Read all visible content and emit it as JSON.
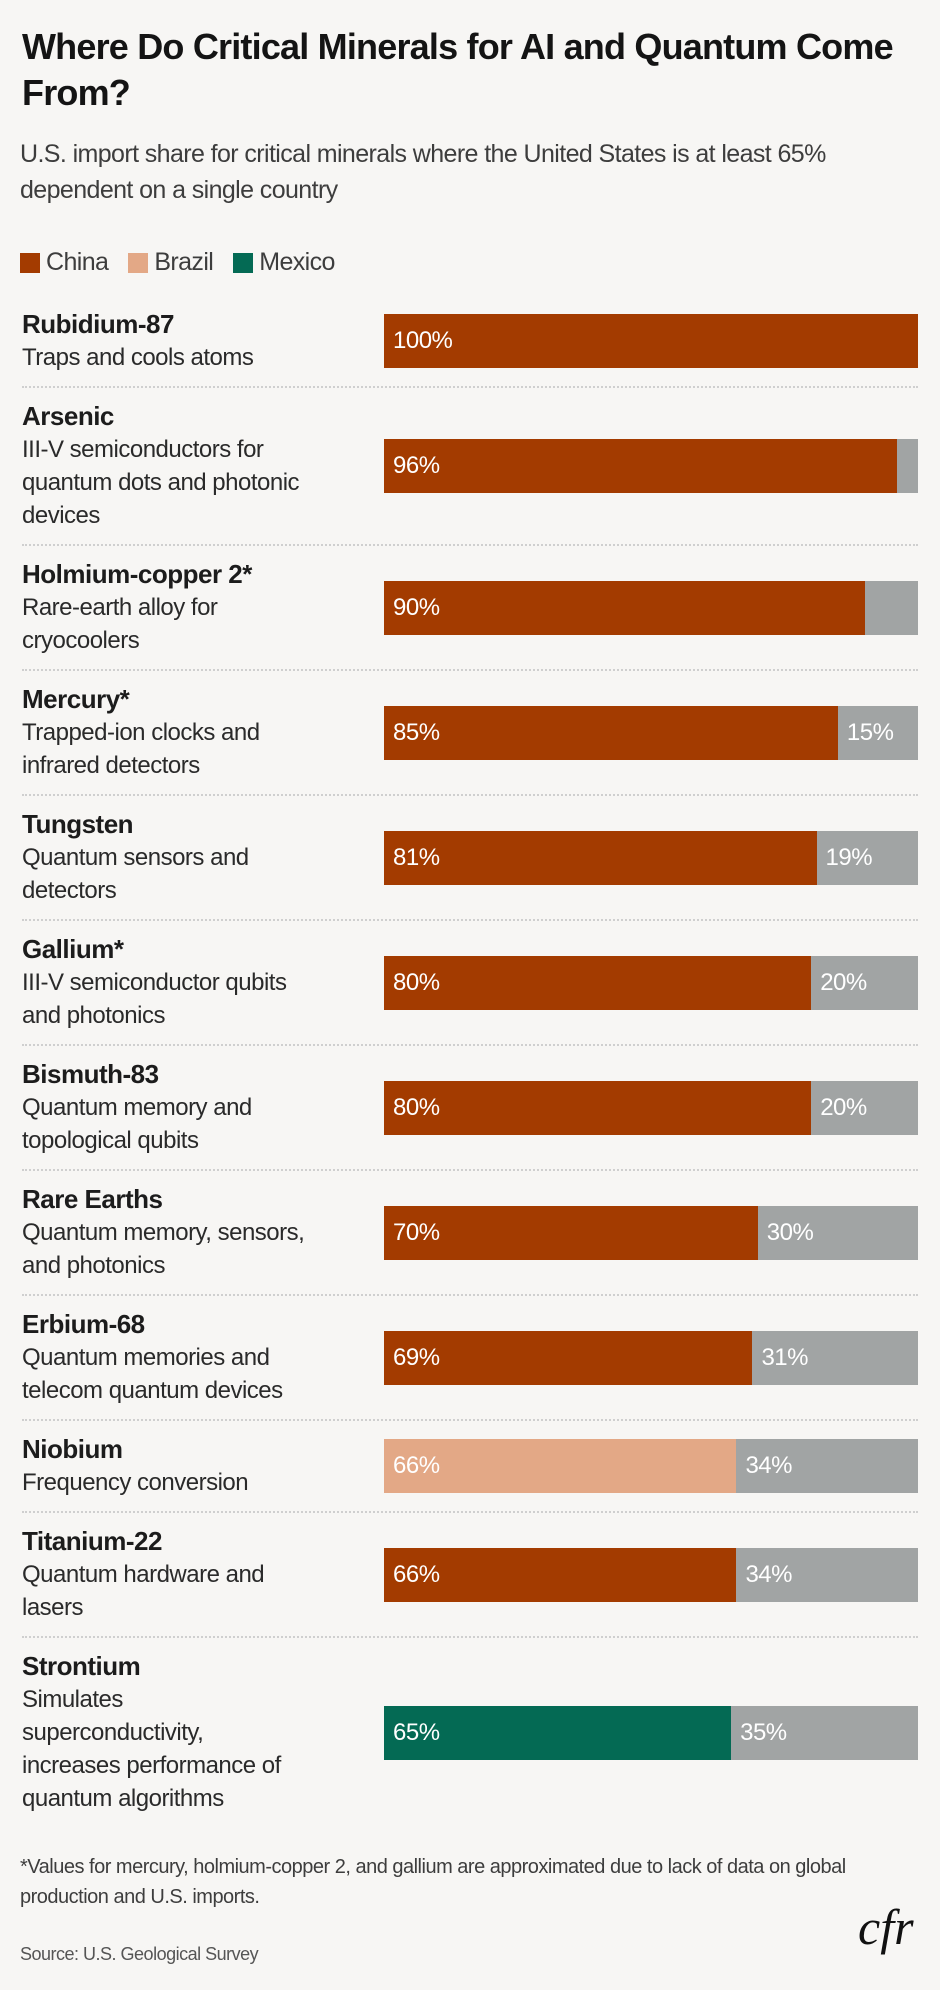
{
  "colors": {
    "China": "#a33b00",
    "Brazil": "#e3a886",
    "Mexico": "#046a54",
    "Other": "#a1a4a4"
  },
  "logo_text": "cfr",
  "chart_data": {
    "type": "bar",
    "orientation": "horizontal-stacked",
    "title": "Where Do Critical Minerals for AI and Quantum Come From?",
    "subtitle": "U.S. import share for critical minerals where the United States is at least 65% dependent on a single country",
    "legend": [
      {
        "name": "China"
      },
      {
        "name": "Brazil"
      },
      {
        "name": "Mexico"
      }
    ],
    "legend_placement": "top-left",
    "xlim": [
      0,
      100
    ],
    "grid": false,
    "rows": [
      {
        "name": "Rubidium-87",
        "desc": [
          "Traps and cools atoms"
        ],
        "country": "China",
        "value": 100,
        "value_label": "100%",
        "other": 0,
        "other_label": ""
      },
      {
        "name": "Arsenic",
        "desc": [
          "III-V semiconductors for",
          "quantum dots and photonic",
          "devices"
        ],
        "country": "China",
        "value": 96,
        "value_label": "96%",
        "other": 4,
        "other_label": ""
      },
      {
        "name": "Holmium-copper 2*",
        "desc": [
          "Rare-earth alloy for",
          "cryocoolers"
        ],
        "country": "China",
        "value": 90,
        "value_label": "90%",
        "other": 10,
        "other_label": ""
      },
      {
        "name": "Mercury*",
        "desc": [
          "Trapped-ion clocks and",
          "infrared detectors"
        ],
        "country": "China",
        "value": 85,
        "value_label": "85%",
        "other": 15,
        "other_label": "15%"
      },
      {
        "name": "Tungsten",
        "desc": [
          "Quantum sensors and",
          "detectors"
        ],
        "country": "China",
        "value": 81,
        "value_label": "81%",
        "other": 19,
        "other_label": "19%"
      },
      {
        "name": "Gallium*",
        "desc": [
          "III-V semiconductor qubits",
          "and photonics"
        ],
        "country": "China",
        "value": 80,
        "value_label": "80%",
        "other": 20,
        "other_label": "20%"
      },
      {
        "name": "Bismuth-83",
        "desc": [
          "Quantum memory and",
          "topological qubits"
        ],
        "country": "China",
        "value": 80,
        "value_label": "80%",
        "other": 20,
        "other_label": "20%"
      },
      {
        "name": "Rare Earths",
        "desc": [
          "Quantum memory, sensors,",
          "and photonics"
        ],
        "country": "China",
        "value": 70,
        "value_label": "70%",
        "other": 30,
        "other_label": "30%"
      },
      {
        "name": "Erbium-68",
        "desc": [
          "Quantum memories and",
          "telecom quantum devices"
        ],
        "country": "China",
        "value": 69,
        "value_label": "69%",
        "other": 31,
        "other_label": "31%"
      },
      {
        "name": "Niobium",
        "desc": [
          "Frequency conversion"
        ],
        "country": "Brazil",
        "value": 66,
        "value_label": "66%",
        "other": 34,
        "other_label": "34%"
      },
      {
        "name": "Titanium-22",
        "desc": [
          "Quantum hardware and",
          "lasers"
        ],
        "country": "China",
        "value": 66,
        "value_label": "66%",
        "other": 34,
        "other_label": "34%"
      },
      {
        "name": "Strontium",
        "desc": [
          "Simulates",
          "superconductivity,",
          "increases performance of",
          "quantum algorithms"
        ],
        "country": "Mexico",
        "value": 65,
        "value_label": "65%",
        "other": 35,
        "other_label": "35%"
      }
    ],
    "footnote": "*Values for mercury, holmium-copper 2, and gallium are approximated due to lack of data on global production and U.S. imports.",
    "source": "Source: U.S. Geological Survey"
  }
}
